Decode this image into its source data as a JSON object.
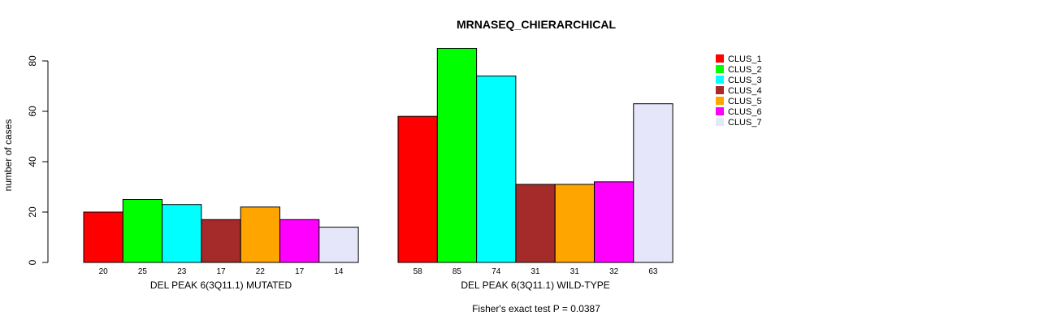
{
  "chart_data": {
    "type": "bar",
    "title": "MRNASEQ_CHIERARCHICAL",
    "ylabel": "number of cases",
    "ylim": [
      0,
      80
    ],
    "yticks": [
      0,
      20,
      40,
      60,
      80
    ],
    "footnote": "Fisher's exact test P = 0.0387",
    "legend_position": "top-right",
    "series": [
      {
        "name": "CLUS_1",
        "color": "#FF0000"
      },
      {
        "name": "CLUS_2",
        "color": "#00FF00"
      },
      {
        "name": "CLUS_3",
        "color": "#00FFFF"
      },
      {
        "name": "CLUS_4",
        "color": "#A52A2A"
      },
      {
        "name": "CLUS_5",
        "color": "#FFA500"
      },
      {
        "name": "CLUS_6",
        "color": "#FF00FF"
      },
      {
        "name": "CLUS_7",
        "color": "#E6E6FA"
      }
    ],
    "groups": [
      {
        "label": "DEL PEAK  6(3Q11.1) MUTATED",
        "values": [
          20,
          25,
          23,
          17,
          22,
          17,
          14
        ]
      },
      {
        "label": "DEL PEAK  6(3Q11.1) WILD-TYPE",
        "values": [
          58,
          85,
          74,
          31,
          31,
          32,
          63
        ]
      }
    ]
  }
}
